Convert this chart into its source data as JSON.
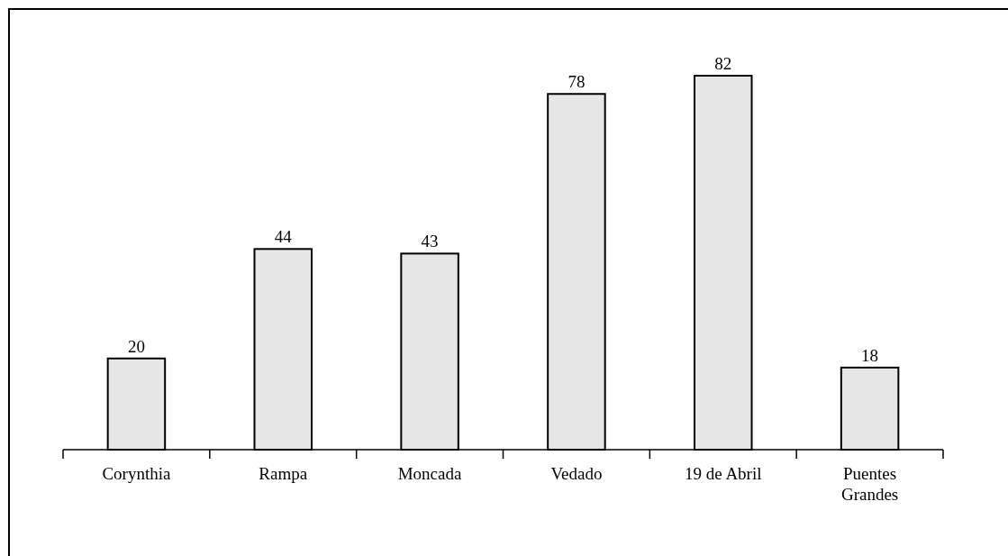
{
  "chart_data": {
    "type": "bar",
    "categories": [
      "Corynthia",
      "Rampa",
      "Moncada",
      "Vedado",
      "19 de Abril",
      "Puentes Grandes"
    ],
    "values": [
      20,
      44,
      43,
      78,
      82,
      18
    ],
    "color": "#e6e6e6",
    "data_labels": true
  }
}
